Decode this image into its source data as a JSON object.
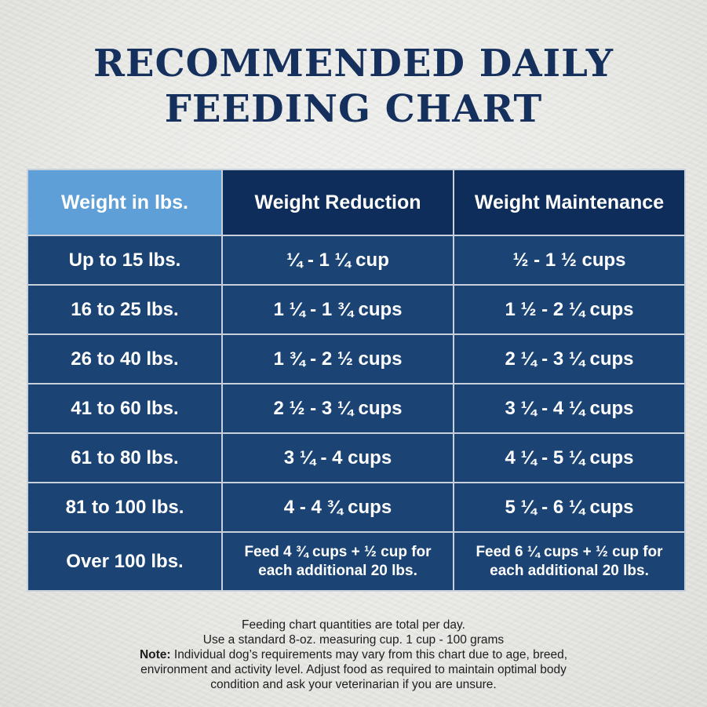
{
  "title": {
    "line1": "RECOMMENDED DAILY",
    "line2": "FEEDING CHART"
  },
  "table": {
    "headers": [
      "Weight in lbs.",
      "Weight Reduction",
      "Weight Maintenance"
    ],
    "rows": [
      [
        "Up to 15 lbs.",
        "¼ - 1 ¼ cup",
        "½ - 1 ½ cups"
      ],
      [
        "16 to 25 lbs.",
        "1 ¼ - 1 ¾ cups",
        "1 ½ - 2 ¼ cups"
      ],
      [
        "26 to 40 lbs.",
        "1 ¾ - 2 ½ cups",
        "2 ¼ - 3 ¼ cups"
      ],
      [
        "41 to 60 lbs.",
        "2 ½ - 3 ¼ cups",
        "3 ¼ - 4 ¼ cups"
      ],
      [
        "61 to 80 lbs.",
        "3 ¼ - 4 cups",
        "4 ¼ - 5 ¼ cups"
      ],
      [
        "81 to 100 lbs.",
        "4 - 4 ¾ cups",
        "5 ¼ - 6 ¼ cups"
      ]
    ],
    "last_row": {
      "weight": "Over 100 lbs.",
      "reduction_line1": "Feed 4 ¾ cups + ½ cup for",
      "reduction_line2": "each additional 20 lbs.",
      "maintenance_line1": "Feed 6 ¼ cups + ½ cup for",
      "maintenance_line2": "each additional 20 lbs."
    }
  },
  "footer": {
    "line1": "Feeding chart quantities are total per day.",
    "line2": "Use a standard 8-oz. measuring cup. 1 cup - 100 grams",
    "note_label": "Note:",
    "note_line1": " Individual dog’s requirements may vary from this chart due to age, breed,",
    "note_line2": "environment and activity level. Adjust food as required to maintain optimal body",
    "note_line3": "condition and ask your veterinarian if you are unsure."
  },
  "colors": {
    "title": "#15305c",
    "header_dark": "#0e2d5a",
    "header_light": "#5d9fd6",
    "cell": "#1b4475",
    "border": "#c8d0dc"
  }
}
